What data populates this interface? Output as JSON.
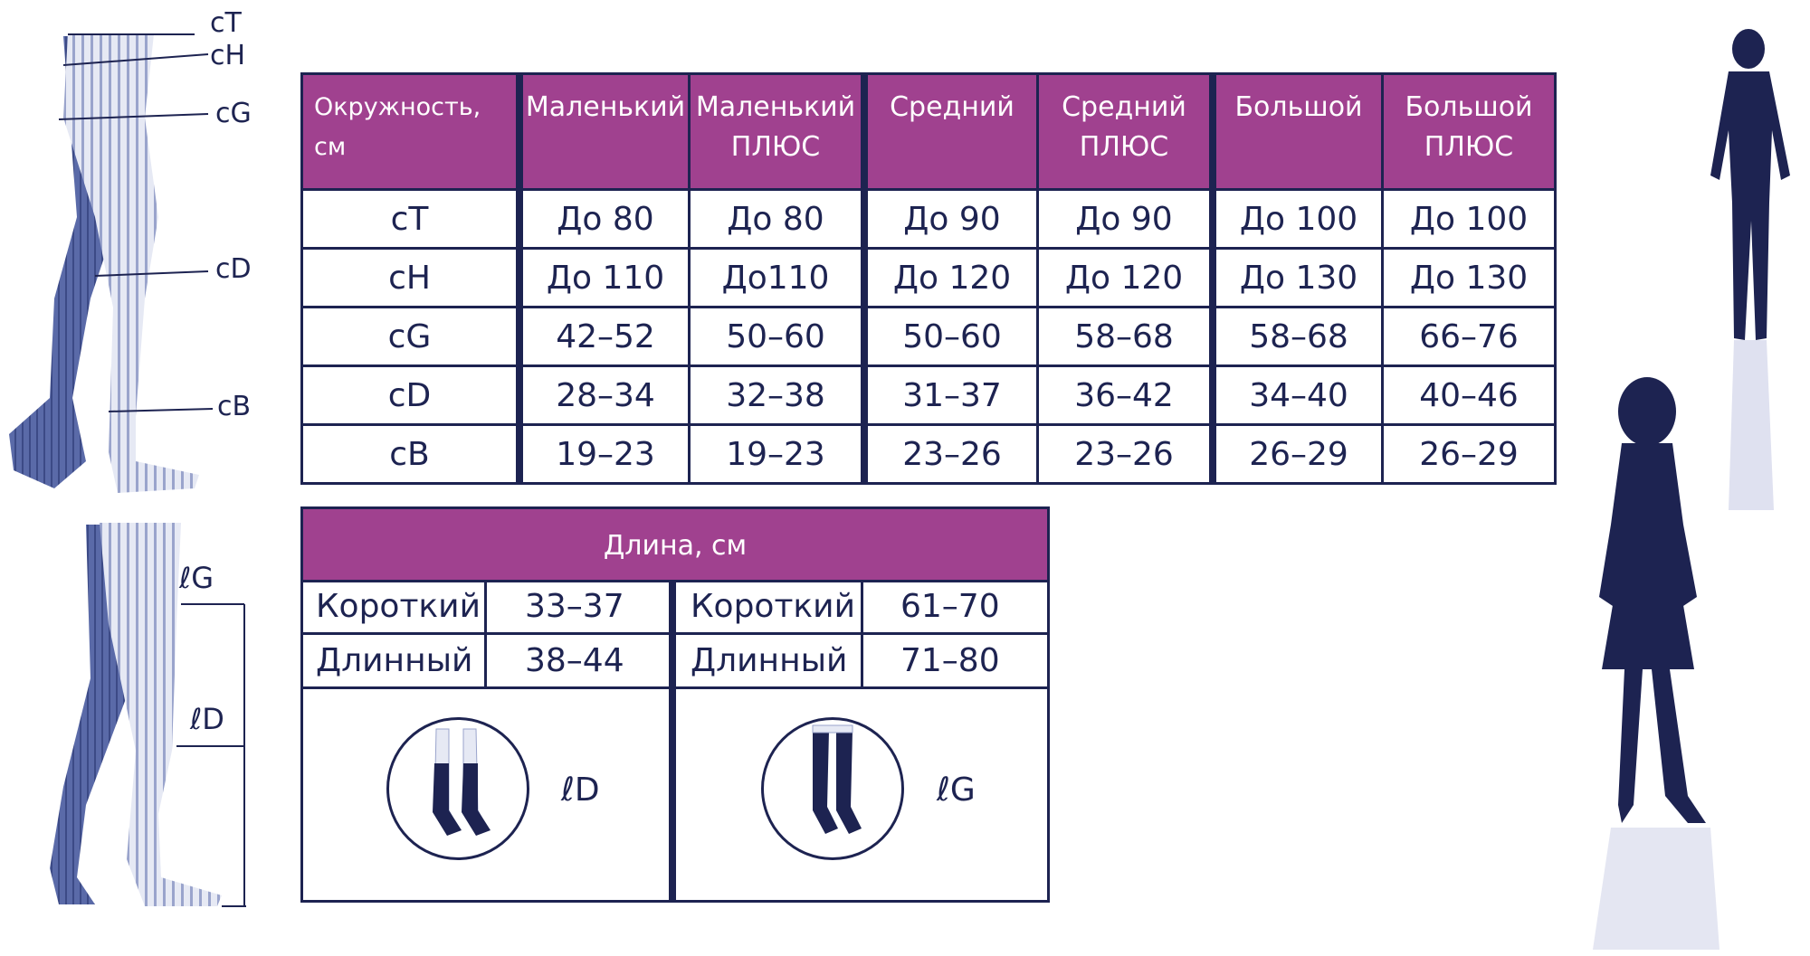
{
  "leg_labels": {
    "ct": "cT",
    "ch": "cH",
    "cg": "cG",
    "cd": "cD",
    "cb": "cB",
    "lg": "ℓG",
    "ld": "ℓD"
  },
  "size_table": {
    "headers": [
      {
        "line1": "Окружность, см",
        "line2": ""
      },
      {
        "line1": "Маленький",
        "line2": ""
      },
      {
        "line1": "Маленький",
        "line2": "ПЛЮС"
      },
      {
        "line1": "Средний",
        "line2": ""
      },
      {
        "line1": "Средний",
        "line2": "ПЛЮС"
      },
      {
        "line1": "Большой",
        "line2": ""
      },
      {
        "line1": "Большой",
        "line2": "ПЛЮС"
      }
    ],
    "rows": [
      [
        "cT",
        "До 80",
        "До 80",
        "До 90",
        "До 90",
        "До 100",
        "До 100"
      ],
      [
        "cH",
        "До 110",
        "До110",
        "До 120",
        "До 120",
        "До 130",
        "До 130"
      ],
      [
        "cG",
        "42–52",
        "50–60",
        "50–60",
        "58–68",
        "58–68",
        "66–76"
      ],
      [
        "cD",
        "28–34",
        "32–38",
        "31–37",
        "36–42",
        "34–40",
        "40–46"
      ],
      [
        "cB",
        "19–23",
        "19–23",
        "23–26",
        "23–26",
        "26–29",
        "26–29"
      ]
    ]
  },
  "length_table": {
    "title": "Длина, см",
    "left": [
      {
        "label": "Короткий",
        "value": "33–37"
      },
      {
        "label": "Длинный",
        "value": "38–44"
      }
    ],
    "right": [
      {
        "label": "Короткий",
        "value": "61–70"
      },
      {
        "label": "Длинный",
        "value": "71–80"
      }
    ],
    "left_icon_label": "ℓD",
    "right_icon_label": "ℓG"
  },
  "colors": {
    "navy": "#1d2351",
    "purple": "#a0418f",
    "leg": "#5a6aa8"
  }
}
